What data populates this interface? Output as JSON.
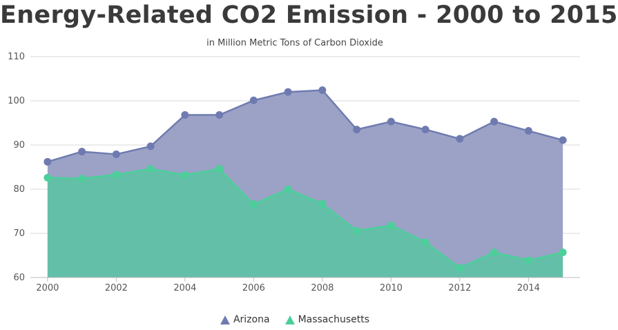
{
  "chart_data": {
    "type": "area",
    "title": "Energy-Related CO2 Emission - 2000 to 2015",
    "subtitle": "in Million Metric Tons of Carbon Dioxide",
    "x": [
      2000,
      2001,
      2002,
      2003,
      2004,
      2005,
      2006,
      2007,
      2008,
      2009,
      2010,
      2011,
      2012,
      2013,
      2014,
      2015
    ],
    "x_ticks": [
      "2000",
      "2002",
      "2004",
      "2006",
      "2008",
      "2010",
      "2012",
      "2014"
    ],
    "y_ticks": [
      "60",
      "70",
      "80",
      "90",
      "100",
      "110"
    ],
    "ylim": [
      60,
      110
    ],
    "xlim": [
      1999.5,
      2015.5
    ],
    "grid": true,
    "legend_position": "bottom-center",
    "series": [
      {
        "name": "Arizona",
        "color": "#6f7bb0",
        "fill": "#9ba2c6",
        "values": [
          86.2,
          88.5,
          87.9,
          89.7,
          96.8,
          96.8,
          100.1,
          102.0,
          102.4,
          93.5,
          95.3,
          93.5,
          91.4,
          95.3,
          93.2,
          91.1
        ]
      },
      {
        "name": "Massachusetts",
        "color": "#4ccf9a",
        "fill": "#64bfa8",
        "values": [
          82.6,
          82.4,
          83.3,
          84.6,
          83.2,
          84.6,
          76.6,
          80.0,
          76.7,
          70.6,
          71.8,
          68.0,
          62.2,
          65.7,
          63.9,
          65.7
        ]
      }
    ]
  }
}
